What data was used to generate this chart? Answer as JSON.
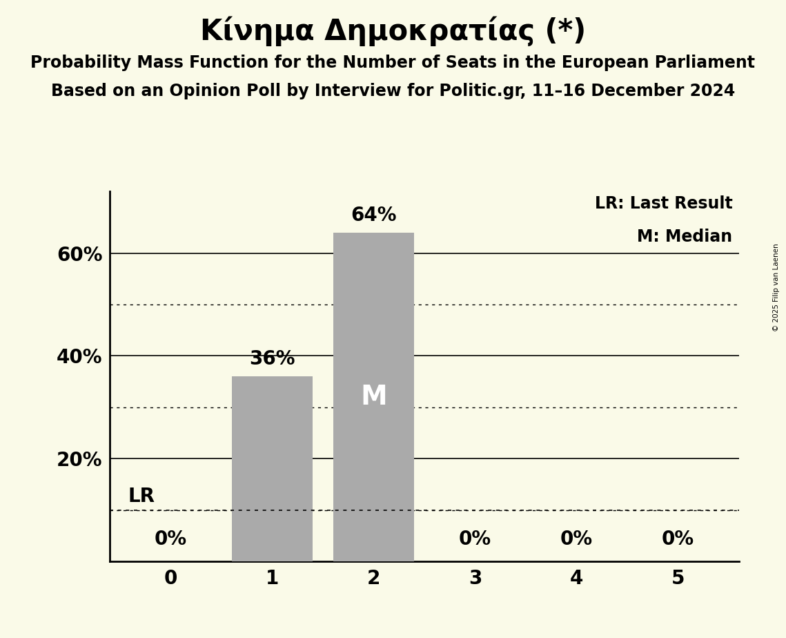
{
  "title": "Κίνημα Δημοκρατίας (*)",
  "subtitle1": "Probability Mass Function for the Number of Seats in the European Parliament",
  "subtitle2": "Based on an Opinion Poll by Interview for Politic.gr, 11–16 December 2024",
  "copyright": "© 2025 Filip van Laenen",
  "categories": [
    0,
    1,
    2,
    3,
    4,
    5
  ],
  "values": [
    0.0,
    0.36,
    0.64,
    0.0,
    0.0,
    0.0
  ],
  "bar_color": "#aaaaaa",
  "bar_labels": [
    "0%",
    "36%",
    "64%",
    "0%",
    "0%",
    "0%"
  ],
  "median": 2,
  "lr_value": 0.1,
  "background_color": "#fafae8",
  "title_fontsize": 30,
  "subtitle_fontsize": 17,
  "bar_label_fontsize": 20,
  "axis_tick_fontsize": 20,
  "legend_fontsize": 17,
  "ylim": [
    0.0,
    0.72
  ],
  "yticks": [
    0.2,
    0.4,
    0.6
  ],
  "ytick_labels": [
    "20%",
    "40%",
    "60%"
  ],
  "dotted_gridlines": [
    0.1,
    0.3,
    0.5
  ],
  "solid_gridlines": [
    0.2,
    0.4,
    0.6
  ]
}
